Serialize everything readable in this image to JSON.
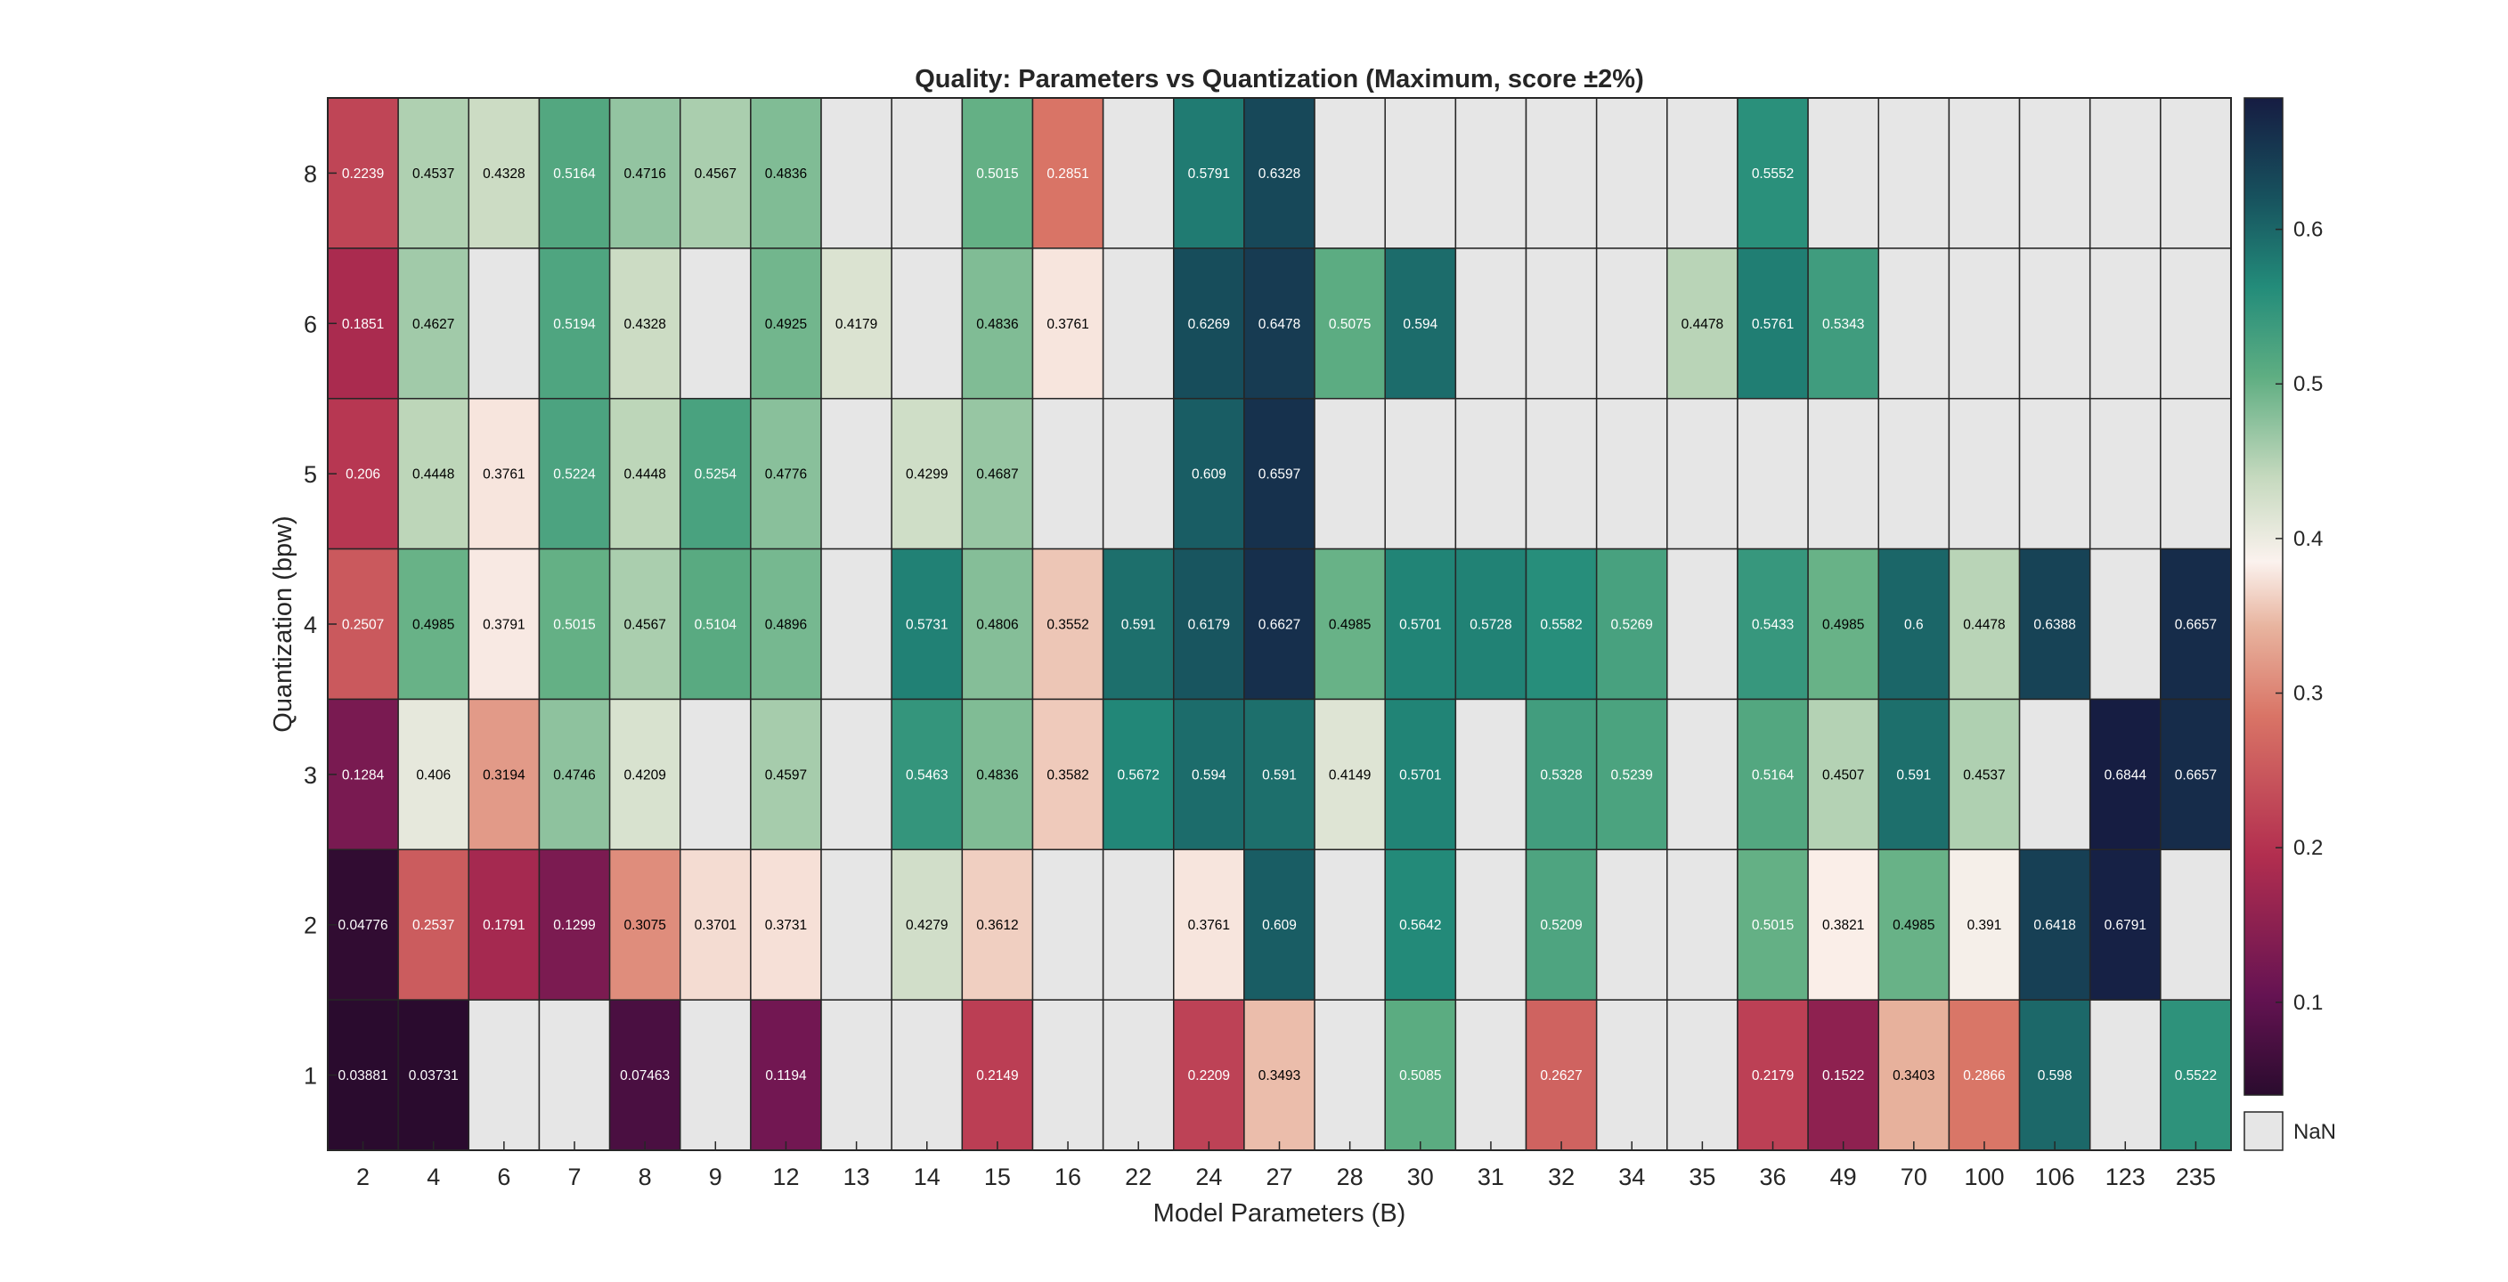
{
  "chart_data": {
    "type": "heatmap",
    "title": "Quality: Parameters vs Quantization (Maximum, score ±2%)",
    "xlabel": "Model Parameters (B)",
    "ylabel": "Quantization (bpw)",
    "x": [
      "2",
      "4",
      "6",
      "7",
      "8",
      "9",
      "12",
      "13",
      "14",
      "15",
      "16",
      "22",
      "24",
      "27",
      "28",
      "30",
      "31",
      "32",
      "34",
      "35",
      "36",
      "49",
      "70",
      "100",
      "106",
      "123",
      "235"
    ],
    "y": [
      "8",
      "6",
      "5",
      "4",
      "3",
      "2",
      "1"
    ],
    "values": [
      [
        "0.2239",
        "0.4537",
        "0.4328",
        "0.5164",
        "0.4716",
        "0.4567",
        "0.4836",
        null,
        null,
        "0.5015",
        "0.2851",
        null,
        "0.5791",
        "0.6328",
        null,
        null,
        null,
        null,
        null,
        null,
        "0.5552",
        null,
        null,
        null,
        null,
        null,
        null
      ],
      [
        "0.1851",
        "0.4627",
        null,
        "0.5194",
        "0.4328",
        null,
        "0.4925",
        "0.4179",
        null,
        "0.4836",
        "0.3761",
        null,
        "0.6269",
        "0.6478",
        "0.5075",
        "0.594",
        null,
        null,
        null,
        "0.4478",
        "0.5761",
        "0.5343",
        null,
        null,
        null,
        null,
        null
      ],
      [
        "0.206",
        "0.4448",
        "0.3761",
        "0.5224",
        "0.4448",
        "0.5254",
        "0.4776",
        null,
        "0.4299",
        "0.4687",
        null,
        null,
        "0.609",
        "0.6597",
        null,
        null,
        null,
        null,
        null,
        null,
        null,
        null,
        null,
        null,
        null,
        null,
        null
      ],
      [
        "0.2507",
        "0.4985",
        "0.3791",
        "0.5015",
        "0.4567",
        "0.5104",
        "0.4896",
        null,
        "0.5731",
        "0.4806",
        "0.3552",
        "0.591",
        "0.6179",
        "0.6627",
        "0.4985",
        "0.5701",
        "0.5728",
        "0.5582",
        "0.5269",
        null,
        "0.5433",
        "0.4985",
        "0.6",
        "0.4478",
        "0.6388",
        null,
        "0.6657"
      ],
      [
        "0.1284",
        "0.406",
        "0.3194",
        "0.4746",
        "0.4209",
        null,
        "0.4597",
        null,
        "0.5463",
        "0.4836",
        "0.3582",
        "0.5672",
        "0.594",
        "0.591",
        "0.4149",
        "0.5701",
        null,
        "0.5328",
        "0.5239",
        null,
        "0.5164",
        "0.4507",
        "0.591",
        "0.4537",
        null,
        "0.6844",
        "0.6657"
      ],
      [
        "0.04776",
        "0.2537",
        "0.1791",
        "0.1299",
        "0.3075",
        "0.3701",
        "0.3731",
        null,
        "0.4279",
        "0.3612",
        null,
        null,
        "0.3761",
        "0.609",
        null,
        "0.5642",
        null,
        "0.5209",
        null,
        null,
        "0.5015",
        "0.3821",
        "0.4985",
        "0.391",
        "0.6418",
        "0.6791",
        null
      ],
      [
        "0.03881",
        "0.03731",
        null,
        null,
        "0.07463",
        null,
        "0.1194",
        null,
        null,
        "0.2149",
        null,
        null,
        "0.2209",
        "0.3493",
        null,
        "0.5085",
        null,
        "0.2627",
        null,
        null,
        "0.2179",
        "0.1522",
        "0.3403",
        "0.2866",
        "0.598",
        null,
        "0.5522"
      ]
    ],
    "color_range": [
      0.04,
      0.685
    ],
    "colorbar_ticks": [
      "0.1",
      "0.2",
      "0.3",
      "0.4",
      "0.5",
      "0.6"
    ],
    "nan_label": "NaN",
    "nan_color": "#e6e6e6",
    "colormap": [
      [
        0.0,
        "#2a0b2e"
      ],
      [
        0.1,
        "#651352"
      ],
      [
        0.24,
        "#b22e4f"
      ],
      [
        0.38,
        "#d97466"
      ],
      [
        0.47,
        "#e8b49f"
      ],
      [
        0.535,
        "#fbf2ee"
      ],
      [
        0.62,
        "#c5d9be"
      ],
      [
        0.72,
        "#5fae82"
      ],
      [
        0.81,
        "#238c7a"
      ],
      [
        0.9,
        "#17525e"
      ],
      [
        1.0,
        "#161c42"
      ]
    ]
  }
}
